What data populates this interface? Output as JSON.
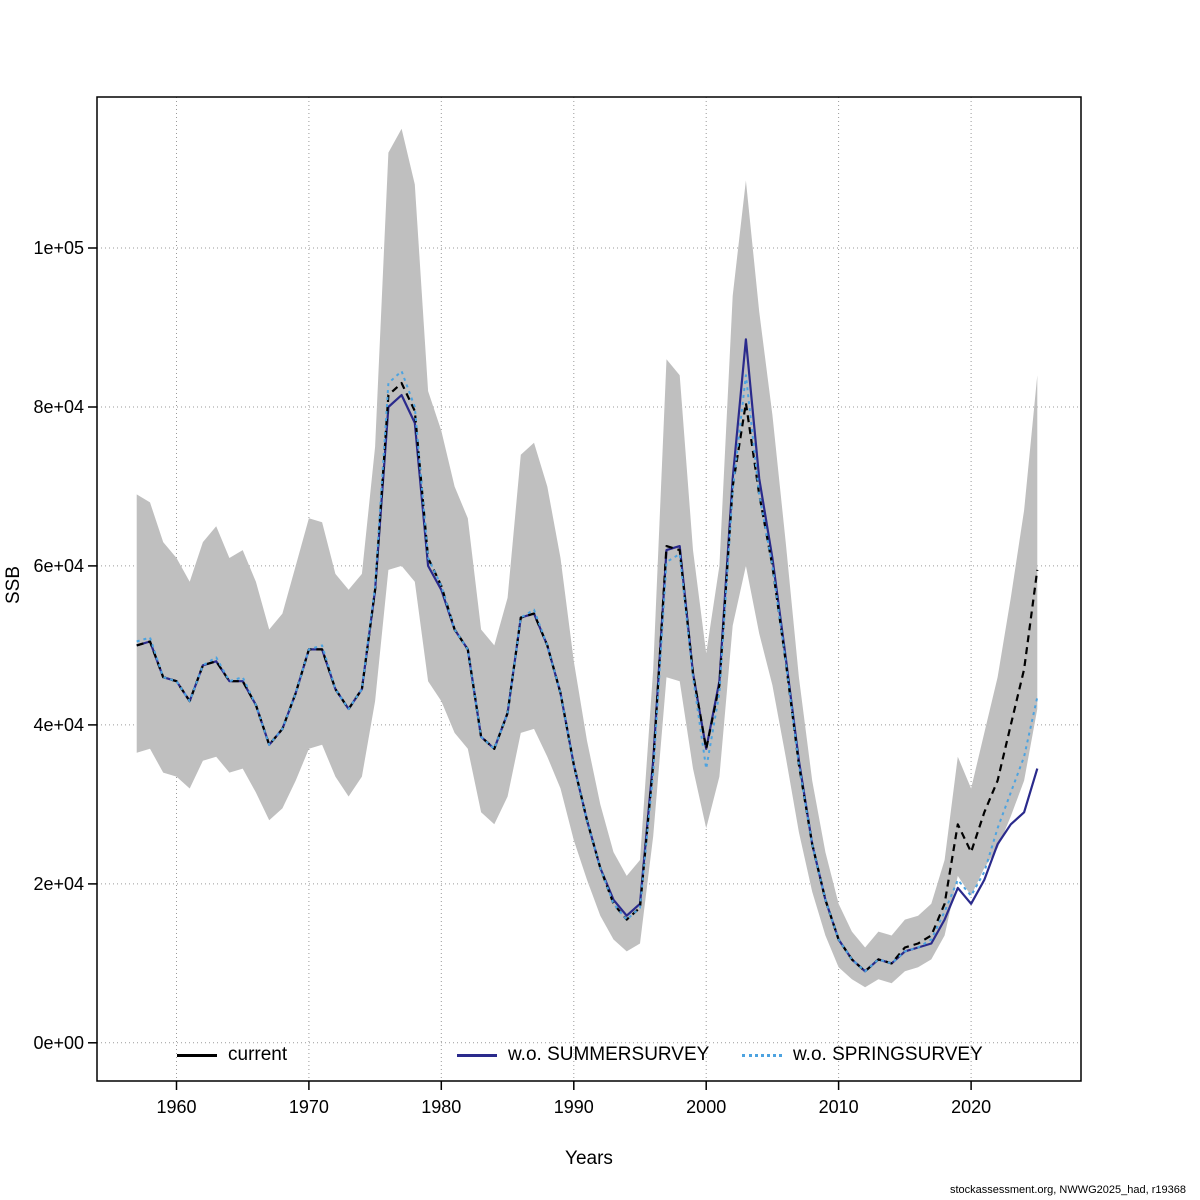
{
  "chart_data": {
    "type": "line",
    "title": "",
    "xlabel": "Years",
    "ylabel": "SSB",
    "watermark": "stockassessment.org, NWWG2025_had, r19368",
    "grid": true,
    "legend_position": "bottom-inside",
    "xlim": [
      1954,
      2028.3
    ],
    "ylim": [
      -4800,
      119000
    ],
    "x_ticks": [
      1960,
      1970,
      1980,
      1990,
      2000,
      2010,
      2020
    ],
    "x_tick_labels": [
      "1960",
      "1970",
      "1980",
      "1990",
      "2000",
      "2010",
      "2020"
    ],
    "y_ticks": [
      0,
      20000,
      40000,
      60000,
      80000,
      100000
    ],
    "y_tick_labels": [
      "0e+00",
      "2e+04",
      "4e+04",
      "6e+04",
      "8e+04",
      "1e+05"
    ],
    "x": [
      1957,
      1958,
      1959,
      1960,
      1961,
      1962,
      1963,
      1964,
      1965,
      1966,
      1967,
      1968,
      1969,
      1970,
      1971,
      1972,
      1973,
      1974,
      1975,
      1976,
      1977,
      1978,
      1979,
      1980,
      1981,
      1982,
      1983,
      1984,
      1985,
      1986,
      1987,
      1988,
      1989,
      1990,
      1991,
      1992,
      1993,
      1994,
      1995,
      1996,
      1997,
      1998,
      1999,
      2000,
      2001,
      2002,
      2003,
      2004,
      2005,
      2006,
      2007,
      2008,
      2009,
      2010,
      2011,
      2012,
      2013,
      2014,
      2015,
      2016,
      2017,
      2018,
      2019,
      2020,
      2021,
      2022,
      2023,
      2024,
      2025
    ],
    "band": {
      "name": "current-confidence-band",
      "color": "#bfbfbf",
      "upper": [
        69000,
        68000,
        63000,
        61000,
        58000,
        63000,
        65000,
        61000,
        62000,
        58000,
        52000,
        54000,
        60000,
        66000,
        65500,
        59000,
        57000,
        59000,
        75000,
        112000,
        115000,
        108000,
        82000,
        77000,
        70000,
        66000,
        52000,
        50000,
        56000,
        74000,
        75500,
        70000,
        61000,
        48000,
        38000,
        30000,
        24000,
        21000,
        23000,
        47000,
        86000,
        84000,
        62000,
        49000,
        60000,
        94000,
        108500,
        92000,
        79000,
        63000,
        46000,
        33000,
        24000,
        17500,
        14000,
        12000,
        14000,
        13500,
        15500,
        16000,
        17500,
        23000,
        36000,
        32000,
        39000,
        46000,
        56000,
        67000,
        84000
      ],
      "lower": [
        36500,
        37000,
        34000,
        33500,
        32000,
        35500,
        36000,
        34000,
        34500,
        31500,
        28000,
        29500,
        33000,
        37000,
        37500,
        33500,
        31000,
        33500,
        43000,
        59500,
        60000,
        58000,
        45500,
        43000,
        39000,
        37000,
        29000,
        27500,
        31000,
        39000,
        39500,
        36000,
        32000,
        25500,
        20500,
        16000,
        13000,
        11500,
        12500,
        26000,
        46000,
        45500,
        34500,
        27000,
        33500,
        52500,
        60000,
        51500,
        45000,
        36000,
        26500,
        19000,
        13500,
        9500,
        8000,
        7000,
        8000,
        7500,
        9000,
        9500,
        10500,
        13500,
        21000,
        18500,
        22000,
        24500,
        28500,
        33000,
        42000
      ]
    },
    "series": [
      {
        "id": "current",
        "name": "current",
        "color": "#000000",
        "dash": "7 5",
        "width": 2.2,
        "legend_style": "solid",
        "values": [
          50000,
          50500,
          46000,
          45500,
          43000,
          47500,
          48000,
          45500,
          45500,
          42500,
          37500,
          39500,
          44000,
          49500,
          49500,
          44500,
          42000,
          44500,
          57000,
          81500,
          83000,
          79500,
          61000,
          57500,
          52000,
          49500,
          38500,
          37000,
          41500,
          53500,
          54000,
          50000,
          44000,
          35000,
          28000,
          22000,
          17500,
          15500,
          17000,
          35000,
          62500,
          62000,
          46500,
          37000,
          45000,
          70000,
          80500,
          69000,
          60000,
          48000,
          35000,
          25000,
          18000,
          13000,
          10500,
          9000,
          10500,
          10000,
          12000,
          12500,
          13500,
          17500,
          27500,
          24000,
          29000,
          33000,
          40000,
          47000,
          59500
        ]
      },
      {
        "id": "wo-summersurvey",
        "name": "w.o. SUMMERSURVEY",
        "color": "#2a2a8c",
        "dash": "",
        "width": 2.2,
        "legend_style": "solid",
        "values": [
          50000,
          50500,
          46000,
          45500,
          43000,
          47500,
          48000,
          45500,
          45500,
          42500,
          37500,
          39500,
          44000,
          49500,
          49500,
          44500,
          42000,
          44500,
          57000,
          80000,
          81500,
          78000,
          60000,
          57000,
          52000,
          49500,
          38500,
          37000,
          41500,
          53500,
          54000,
          50000,
          44000,
          35000,
          28000,
          22000,
          18000,
          16000,
          17500,
          35500,
          62000,
          62500,
          46500,
          37000,
          45500,
          71000,
          88500,
          71000,
          61000,
          48500,
          35500,
          25000,
          18000,
          13000,
          10500,
          9000,
          10500,
          10000,
          11500,
          12000,
          12500,
          15500,
          19500,
          17500,
          20500,
          25000,
          27500,
          29000,
          34500
        ]
      },
      {
        "id": "wo-springsurvey",
        "name": "w.o. SPRINGSURVEY",
        "color": "#4da3e0",
        "dash": "3 4",
        "width": 2,
        "legend_style": "dotted",
        "values": [
          50500,
          51000,
          46000,
          45500,
          43000,
          47500,
          48500,
          45500,
          46000,
          42500,
          37500,
          39500,
          44000,
          49500,
          50000,
          44500,
          42000,
          44500,
          57500,
          83000,
          84500,
          80000,
          61000,
          57500,
          52000,
          49500,
          38500,
          37000,
          41500,
          53500,
          54500,
          50000,
          44000,
          35000,
          28000,
          22000,
          17500,
          15500,
          17000,
          34000,
          60500,
          61500,
          46000,
          34500,
          44000,
          69500,
          84000,
          69000,
          60000,
          48000,
          35000,
          25000,
          18000,
          13000,
          10500,
          9000,
          10500,
          10000,
          11500,
          12000,
          13000,
          16500,
          20500,
          18500,
          21500,
          27000,
          31500,
          36000,
          43500
        ]
      }
    ]
  }
}
